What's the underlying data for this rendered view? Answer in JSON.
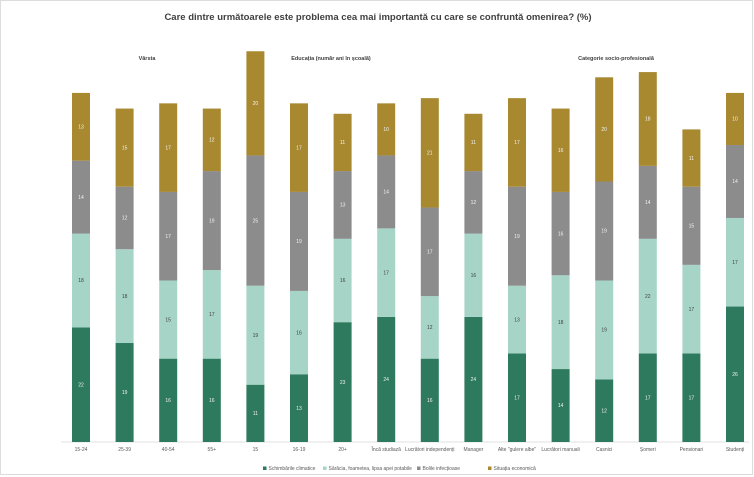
{
  "chart_data": {
    "type": "bar",
    "stacked": true,
    "title": "Care dintre următoarele este problema cea mai importantă cu care se confruntă omenirea? (%)",
    "group_labels": [
      "Vârsta",
      "Educația (număr ani în școală)",
      "Categorie socio-profesională"
    ],
    "categories": [
      "15-24",
      "25-39",
      "40-54",
      "55+",
      "15",
      "16-19",
      "20+",
      "Încă studiază",
      "Lucrători independenți",
      "Manager",
      "Alte \"gulere albe\"",
      "Lucrători manuali",
      "Casnici",
      "Șomeri",
      "Pensionari",
      "Studenți"
    ],
    "series": [
      {
        "name": "Schimbările climatice",
        "color": "#2e7a5e",
        "values": [
          22,
          19,
          16,
          16,
          11,
          13,
          23,
          24,
          16,
          24,
          17,
          14,
          12,
          17,
          17,
          26
        ]
      },
      {
        "name": "Sărăcia, foametea, lipsa apei potabile",
        "color": "#a6d5c8",
        "values": [
          18,
          18,
          15,
          17,
          19,
          16,
          16,
          17,
          12,
          16,
          13,
          18,
          19,
          22,
          17,
          17
        ]
      },
      {
        "name": "Bolile infecțioase",
        "color": "#8c8c8c",
        "values": [
          14,
          12,
          17,
          19,
          25,
          19,
          13,
          14,
          17,
          12,
          19,
          16,
          19,
          14,
          15,
          14
        ]
      },
      {
        "name": "Situația economică",
        "color": "#a88930",
        "values": [
          13,
          15,
          17,
          12,
          20,
          17,
          11,
          10,
          21,
          11,
          17,
          16,
          20,
          18,
          11,
          10
        ]
      }
    ],
    "legend_position": "bottom",
    "grid": false
  }
}
